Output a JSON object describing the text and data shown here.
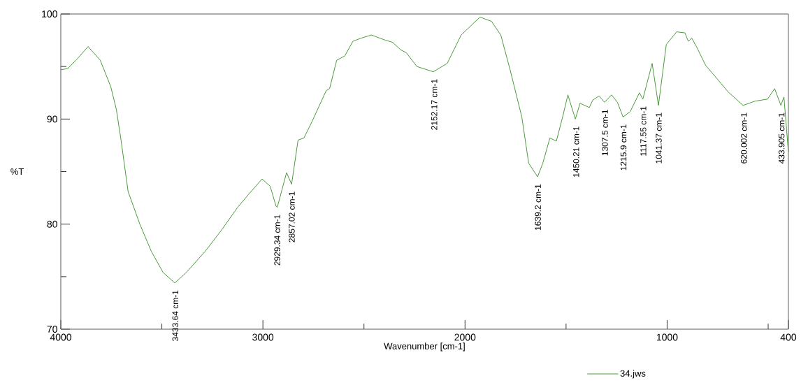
{
  "chart_data": {
    "type": "line",
    "xlabel": "Wavenumber [cm-1]",
    "ylabel": "%T",
    "xlim": [
      4000,
      400
    ],
    "ylim": [
      70,
      100
    ],
    "xticks": [
      4000,
      {
        "value": 3500,
        "label": null
      },
      3000,
      {
        "value": 2500,
        "label": null
      },
      2000,
      {
        "value": 1500,
        "label": null
      },
      1000,
      {
        "value": 500,
        "label": null
      },
      400
    ],
    "yticks": [
      70,
      {
        "value": 75,
        "label": null
      },
      80,
      {
        "value": 85,
        "label": null
      },
      90,
      {
        "value": 95,
        "label": null
      },
      100
    ],
    "legend": "bottom right",
    "line_style": "solid",
    "marker": "none",
    "series": [
      {
        "name": "34.jws",
        "color": "#4a9a3a",
        "x": [
          4000,
          3966,
          3920,
          3865,
          3805,
          3753,
          3725,
          3702,
          3667,
          3609,
          3552,
          3494,
          3436,
          3379,
          3286,
          3206,
          3125,
          3068,
          3004,
          2964,
          2935,
          2929,
          2883,
          2858,
          2826,
          2797,
          2756,
          2687,
          2670,
          2635,
          2595,
          2555,
          2514,
          2463,
          2393,
          2358,
          2319,
          2290,
          2238,
          2157,
          2088,
          2019,
          1926,
          1869,
          1823,
          1777,
          1719,
          1685,
          1641,
          1615,
          1580,
          1548,
          1517,
          1491,
          1454,
          1431,
          1385,
          1368,
          1337,
          1310,
          1275,
          1246,
          1218,
          1183,
          1137,
          1120,
          1074,
          1043,
          1004,
          953,
          912,
          895,
          878,
          855,
          809,
          751,
          699,
          624,
          566,
          503,
          468,
          437,
          422,
          400
        ],
        "values": [
          94.7,
          94.8,
          95.7,
          96.9,
          95.6,
          93.1,
          90.9,
          88.0,
          83.1,
          80.0,
          77.4,
          75.4,
          74.4,
          75.4,
          77.4,
          79.4,
          81.6,
          82.9,
          84.3,
          83.6,
          81.7,
          81.6,
          84.9,
          83.8,
          88.0,
          88.2,
          89.8,
          92.7,
          92.9,
          95.6,
          96.0,
          97.4,
          97.7,
          98.0,
          97.5,
          97.3,
          96.6,
          96.3,
          95.0,
          94.5,
          95.3,
          98.0,
          99.7,
          99.3,
          98.0,
          94.7,
          90.2,
          85.8,
          84.5,
          85.8,
          88.2,
          87.9,
          90.2,
          92.3,
          90.0,
          91.5,
          91.1,
          91.8,
          92.2,
          91.6,
          92.3,
          91.6,
          90.2,
          90.7,
          92.5,
          91.9,
          95.3,
          91.3,
          97.1,
          98.3,
          98.2,
          97.4,
          97.7,
          96.9,
          95.1,
          93.8,
          92.6,
          91.3,
          91.7,
          91.9,
          92.9,
          91.3,
          92.1,
          86.9
        ]
      }
    ],
    "annotations": [
      {
        "text": "3433.64 cm-1",
        "x": 3433.64,
        "y": 74.4
      },
      {
        "text": "2929.34 cm-1",
        "x": 2929.34,
        "y": 81.6
      },
      {
        "text": "2857.02 cm-1",
        "x": 2857.02,
        "y": 83.8
      },
      {
        "text": "2152.17 cm-1",
        "x": 2152.17,
        "y": 94.5
      },
      {
        "text": "1639.2 cm-1",
        "x": 1639.2,
        "y": 84.5
      },
      {
        "text": "1450.21 cm-1",
        "x": 1450.21,
        "y": 90.0
      },
      {
        "text": "1307.5 cm-1",
        "x": 1307.5,
        "y": 91.6
      },
      {
        "text": "1215.9 cm-1",
        "x": 1215.9,
        "y": 90.2
      },
      {
        "text": "1117.55 cm-1",
        "x": 1117.55,
        "y": 91.9
      },
      {
        "text": "1041.37 cm-1",
        "x": 1041.37,
        "y": 91.3
      },
      {
        "text": "620.002 cm-1",
        "x": 620.002,
        "y": 91.3
      },
      {
        "text": "433.905 cm-1",
        "x": 433.905,
        "y": 91.3
      }
    ]
  }
}
